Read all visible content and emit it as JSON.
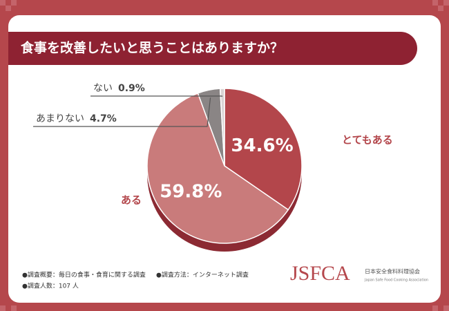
{
  "chart_data": {
    "type": "pie",
    "title": "食事を改善したいと思うことはありますか？",
    "categories": [
      "とてもある",
      "ある",
      "あまりない",
      "ない"
    ],
    "values": [
      34.6,
      59.8,
      4.7,
      0.9
    ],
    "value_labels": [
      "34.6%",
      "59.8%",
      "4.7%",
      "0.9%"
    ],
    "colors": [
      "#b3464b",
      "#c97b7b",
      "#8a8585",
      "#d9d4d4"
    ],
    "notes": [
      "●調査概要：毎日の食事・食育に関する調査",
      "●調査方法：インターネット調査",
      "●調査人数：107 人"
    ],
    "logo": {
      "name": "JSFCA",
      "org": "日本安全食料料理協会",
      "org_en": "Japan Safe Food Cooking Association"
    }
  }
}
